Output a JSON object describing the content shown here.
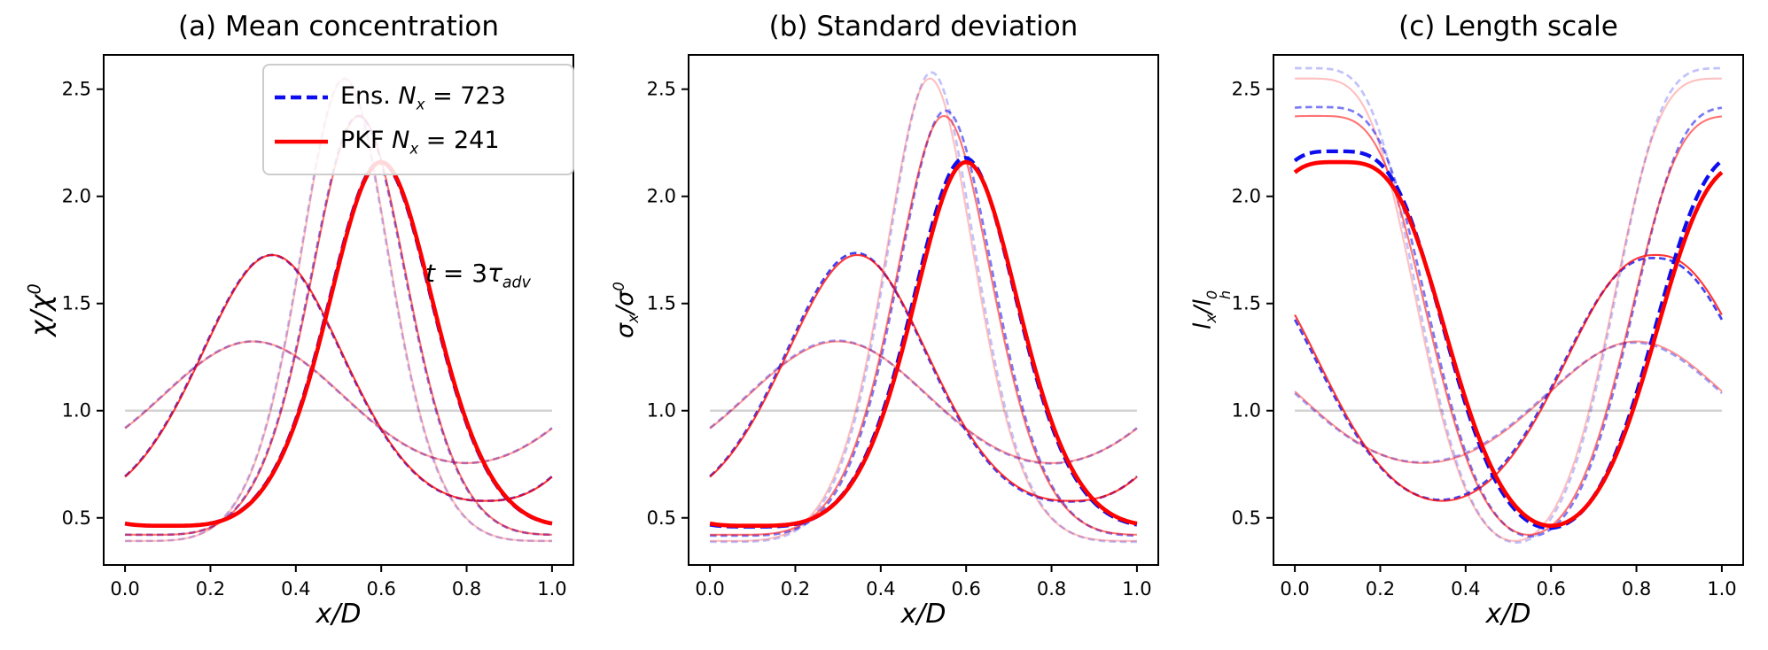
{
  "colors": {
    "ens": "#0d0dee",
    "pkf": "#ff0000",
    "initial": "#d3d3d3",
    "spines": "#000000",
    "legend_border": "#cccccc",
    "text": "#000000"
  },
  "axes": {
    "xlim": [
      -0.05,
      1.05
    ],
    "ylim": [
      0.28,
      2.66
    ],
    "x_ticks": [
      "0.0",
      "0.2",
      "0.4",
      "0.6",
      "0.8",
      "1.0"
    ],
    "x_tick_values": [
      0,
      0.2,
      0.4,
      0.6,
      0.8,
      1.0
    ],
    "y_ticks": [
      "0.5",
      "1.0",
      "1.5",
      "2.0",
      "2.5"
    ],
    "y_tick_values": [
      0.5,
      1.0,
      1.5,
      2.0,
      2.5
    ],
    "xlabel": "x/D"
  },
  "legend": {
    "entries": [
      {
        "prefix": "Ens. ",
        "var": "N",
        "sub": "x",
        "rest": " = 723",
        "series": "ens"
      },
      {
        "prefix": "PKF ",
        "var": "N",
        "sub": "x",
        "rest": " = 241",
        "series": "pkf"
      }
    ]
  },
  "annotation": {
    "t": "t",
    "eq": " = 3",
    "tau": "τ",
    "sub": "adv"
  },
  "panels": [
    {
      "id": "a",
      "title": "(a) Mean concentration",
      "ylabel": {
        "p0": "χ",
        "slash": "/",
        "p1": "χ",
        "sup": "0"
      },
      "xlabel": "x/D",
      "transform": "identity",
      "ens_exp": [
        1,
        1,
        1,
        1,
        1
      ],
      "ens_dx": [
        0.0015,
        0.0015,
        0.0015,
        0.0015,
        0.0015
      ]
    },
    {
      "id": "b",
      "title": "(b) Standard deviation",
      "ylabel": {
        "p0": "σ",
        "sub": "x",
        "slash": "/",
        "p1": "σ",
        "sup": "0"
      },
      "xlabel": "x/D",
      "transform": "identity",
      "ens_exp": [
        1.01,
        1.01,
        1.012,
        1.012,
        1.012
      ],
      "ens_dx": [
        0.002,
        0.003,
        -0.004,
        -0.004,
        0.003
      ]
    },
    {
      "id": "c",
      "title": "(c) Length scale",
      "ylabel": {
        "p0": "l",
        "sub": "x",
        "slash": "/",
        "p1": "l",
        "sub2": "h",
        "sup": "0"
      },
      "xlabel": "x/D",
      "transform": "reciprocal",
      "ens_exp": [
        0.985,
        0.985,
        1.02,
        1.02,
        1.03
      ],
      "ens_dx": [
        0.004,
        0.004,
        -0.004,
        -0.004,
        0.004
      ]
    }
  ],
  "chart_data": {
    "type": "line",
    "title": "",
    "xlabel": "x/D",
    "x_range": [
      0,
      1
    ],
    "xlim": [
      -0.05,
      1.05
    ],
    "ylim": [
      0.28,
      2.66
    ],
    "grid": false,
    "legend_position": "upper right of panel (a)",
    "panel_titles": [
      "(a) Mean concentration",
      "(b) Standard deviation",
      "(c) Length scale"
    ],
    "panel_ylabels": [
      "χ/χ⁰",
      "σₓ/σ⁰",
      "lₓ/lₕ⁰"
    ],
    "series_styles": [
      {
        "name": "Ens. Nₓ = 723",
        "color": "#0d0dee",
        "linestyle": "dashed"
      },
      {
        "name": "PKF Nₓ = 241",
        "color": "#ff0000",
        "linestyle": "solid"
      },
      {
        "name": "initial state t = 0",
        "color": "#d3d3d3",
        "linestyle": "solid",
        "uniform_value": 1.0
      }
    ],
    "annotation": "t = 3τ_adv",
    "model_note": "chi(x) = exp(a*(2*((1+cos(2*pi*(x-c)))/2)^p - 1)); panel a and b plot chi; panel c plots 1/chi; Ens. curve nearly overlays PKF curve in every snapshot",
    "snapshots": [
      {
        "label": "t = 0 initial",
        "type": "uniform",
        "value": 1.0
      },
      {
        "label": "snapshot 1",
        "alpha": 0.4,
        "peak": 1.32,
        "peak_x": 0.3,
        "trough": 0.76,
        "trough_x": 0.8,
        "generator": {
          "a": 0.28,
          "c": 0.3,
          "p": 1.0
        }
      },
      {
        "label": "snapshot 2",
        "alpha": 0.78,
        "peak": 1.73,
        "peak_x": 0.345,
        "trough": 0.58,
        "trough_x": 0.845,
        "generator": {
          "a": 0.546,
          "c": 0.345,
          "p": 1.2
        }
      },
      {
        "label": "snapshot 3",
        "alpha": 0.25,
        "peak": 2.55,
        "peak_x": 0.515,
        "trough": 0.39,
        "trough_x": 0.015,
        "generator": {
          "a": 0.936,
          "c": 0.515,
          "p": 2.2
        }
      },
      {
        "label": "snapshot 4",
        "alpha": 0.55,
        "peak": 2.37,
        "peak_x": 0.548,
        "trough": 0.42,
        "trough_x": 0.048,
        "generator": {
          "a": 0.865,
          "c": 0.548,
          "p": 2.0
        }
      },
      {
        "label": "t = 3 tau_adv (final, bold)",
        "alpha": 1.0,
        "bold": true,
        "peak": 2.16,
        "peak_x": 0.6,
        "trough": 0.46,
        "trough_x": 0.1,
        "generator": {
          "a": 0.77,
          "c": 0.6,
          "p": 1.8
        }
      }
    ]
  }
}
